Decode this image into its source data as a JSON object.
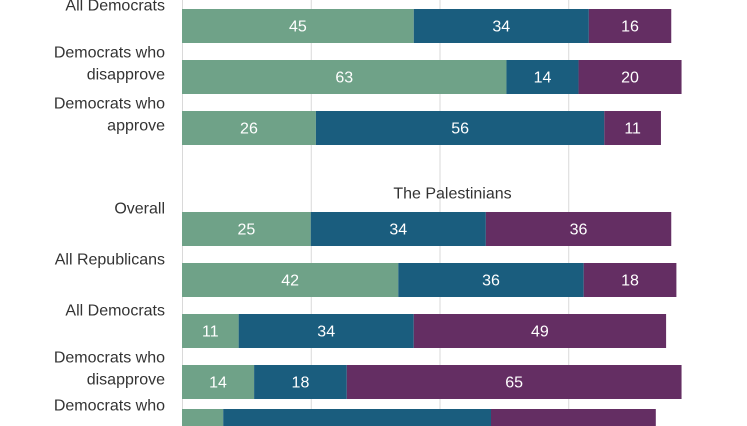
{
  "chart_data": {
    "type": "bar",
    "orientation": "horizontal",
    "stacked": true,
    "xlim": [
      0,
      100
    ],
    "grid": true,
    "colors": [
      "#6fa288",
      "#1a5d7e",
      "#642e63"
    ],
    "sections": [
      {
        "title": "",
        "categories": [
          {
            "label": [
              "All Democrats"
            ],
            "values": [
              45,
              34,
              16
            ]
          },
          {
            "label": [
              "Democrats who",
              "disapprove"
            ],
            "values": [
              63,
              14,
              20
            ]
          },
          {
            "label": [
              "Democrats who",
              "approve"
            ],
            "values": [
              26,
              56,
              11
            ]
          }
        ]
      },
      {
        "title": "The Palestinians",
        "categories": [
          {
            "label": [
              "Overall"
            ],
            "values": [
              25,
              34,
              36
            ]
          },
          {
            "label": [
              "All Republicans"
            ],
            "values": [
              42,
              36,
              18
            ]
          },
          {
            "label": [
              "All Democrats"
            ],
            "values": [
              11,
              34,
              49
            ]
          },
          {
            "label": [
              "Democrats who",
              "disapprove"
            ],
            "values": [
              14,
              18,
              65
            ]
          },
          {
            "label": [
              "Democrats who"
            ],
            "values": [
              8,
              52,
              32
            ],
            "show_values": false
          }
        ]
      }
    ]
  }
}
